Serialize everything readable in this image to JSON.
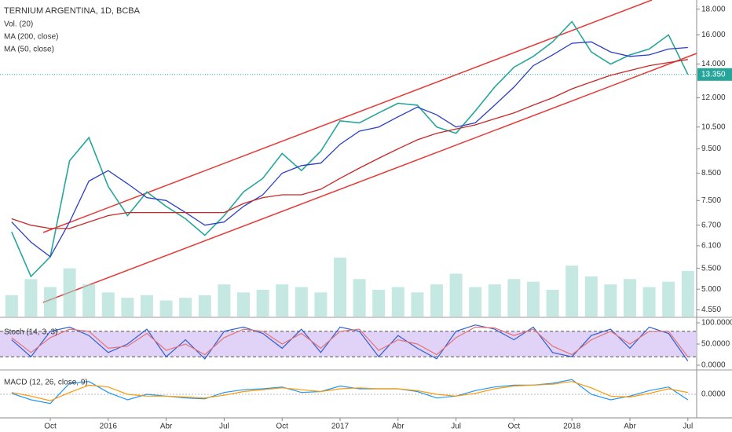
{
  "chart_data": [
    {
      "type": "line",
      "title": "TERNIUM ARGENTINA, 1D, BCBA",
      "legend": [
        "Vol. (20)",
        "MA (200, close)",
        "MA (50, close)"
      ],
      "log_scale": true,
      "x": [
        "2015-08",
        "2015-09",
        "2015-10",
        "2015-11",
        "2015-12",
        "2016-01",
        "2016-02",
        "2016-03",
        "2016-04",
        "2016-05",
        "2016-06",
        "2016-07",
        "2016-08",
        "2016-09",
        "2016-10",
        "2016-11",
        "2016-12",
        "2017-01",
        "2017-02",
        "2017-03",
        "2017-04",
        "2017-05",
        "2017-06",
        "2017-07",
        "2017-08",
        "2017-09",
        "2017-10",
        "2017-11",
        "2017-12",
        "2018-01",
        "2018-02",
        "2018-03",
        "2018-04",
        "2018-05",
        "2018-06",
        "2018-07"
      ],
      "xticks": [
        {
          "value": "2015-10",
          "label": "Oct"
        },
        {
          "value": "2016-01",
          "label": "2016"
        },
        {
          "value": "2016-04",
          "label": "Abr"
        },
        {
          "value": "2016-07",
          "label": "Jul"
        },
        {
          "value": "2016-10",
          "label": "Oct"
        },
        {
          "value": "2017-01",
          "label": "2017"
        },
        {
          "value": "2017-04",
          "label": "Abr"
        },
        {
          "value": "2017-07",
          "label": "Jul"
        },
        {
          "value": "2017-10",
          "label": "Oct"
        },
        {
          "value": "2018-01",
          "label": "2018"
        },
        {
          "value": "2018-04",
          "label": "Abr"
        },
        {
          "value": "2018-07",
          "label": "Jul"
        }
      ],
      "ylim": [
        4.46,
        18.5
      ],
      "yticks": [
        {
          "value": 18,
          "label": "18.000"
        },
        {
          "value": 16,
          "label": "16.000"
        },
        {
          "value": 14,
          "label": "14.000"
        },
        {
          "value": 12,
          "label": "12.000"
        },
        {
          "value": 10.5,
          "label": "10.500"
        },
        {
          "value": 9.5,
          "label": "9.500"
        },
        {
          "value": 8.5,
          "label": "8.500"
        },
        {
          "value": 7.5,
          "label": "7.500"
        },
        {
          "value": 6.7,
          "label": "6.700"
        },
        {
          "value": 6.1,
          "label": "6.100"
        },
        {
          "value": 5.5,
          "label": "5.500"
        },
        {
          "value": 5,
          "label": "5.000"
        },
        {
          "value": 4.55,
          "label": "4.550"
        }
      ],
      "last_price": {
        "value": 13.35,
        "label": "13.350",
        "color": "#26a69a"
      },
      "series": [
        {
          "name": "close",
          "color": "#26a69a",
          "values": [
            6.5,
            5.3,
            5.8,
            9.0,
            10.0,
            8.0,
            7.0,
            7.8,
            7.3,
            6.9,
            6.4,
            7.0,
            7.8,
            8.3,
            9.3,
            8.6,
            9.4,
            10.8,
            10.7,
            11.2,
            11.7,
            11.6,
            10.5,
            10.2,
            11.3,
            12.6,
            13.8,
            14.5,
            15.5,
            17.0,
            14.8,
            14.0,
            14.6,
            15.0,
            16.0,
            13.35
          ]
        },
        {
          "name": "MA (50, close)",
          "color": "#2b3fc4",
          "values": [
            6.8,
            6.2,
            5.8,
            6.8,
            8.2,
            8.6,
            8.1,
            7.6,
            7.5,
            7.1,
            6.7,
            6.8,
            7.3,
            7.7,
            8.5,
            8.8,
            8.9,
            9.7,
            10.3,
            10.5,
            11.0,
            11.5,
            11.1,
            10.5,
            10.7,
            11.6,
            12.6,
            13.9,
            14.6,
            15.4,
            15.5,
            14.8,
            14.5,
            14.6,
            15.0,
            15.1
          ]
        },
        {
          "name": "MA (200, close)",
          "color": "#c62828",
          "values": [
            6.9,
            6.7,
            6.6,
            6.6,
            6.8,
            7.0,
            7.1,
            7.1,
            7.1,
            7.1,
            7.1,
            7.1,
            7.4,
            7.6,
            7.7,
            7.7,
            7.9,
            8.3,
            8.7,
            9.1,
            9.5,
            9.9,
            10.2,
            10.4,
            10.6,
            10.9,
            11.2,
            11.6,
            12.0,
            12.5,
            12.9,
            13.3,
            13.6,
            13.9,
            14.1,
            14.3
          ]
        }
      ],
      "volume": {
        "name": "Vol. (20)",
        "color": "#9fd8cf",
        "values": [
          40,
          70,
          55,
          90,
          60,
          45,
          35,
          40,
          30,
          35,
          40,
          60,
          45,
          50,
          60,
          55,
          45,
          110,
          70,
          50,
          55,
          45,
          60,
          80,
          55,
          60,
          70,
          65,
          50,
          95,
          75,
          60,
          70,
          55,
          65,
          85
        ]
      }
    },
    {
      "type": "stoch",
      "title": "Stoch (14, 3, 3)",
      "x": [
        "2015-08",
        "2015-09",
        "2015-10",
        "2015-11",
        "2015-12",
        "2016-01",
        "2016-02",
        "2016-03",
        "2016-04",
        "2016-05",
        "2016-06",
        "2016-07",
        "2016-08",
        "2016-09",
        "2016-10",
        "2016-11",
        "2016-12",
        "2017-01",
        "2017-02",
        "2017-03",
        "2017-04",
        "2017-05",
        "2017-06",
        "2017-07",
        "2017-08",
        "2017-09",
        "2017-10",
        "2017-11",
        "2017-12",
        "2018-01",
        "2018-02",
        "2018-03",
        "2018-04",
        "2018-05",
        "2018-06",
        "2018-07"
      ],
      "ylim": [
        0,
        100
      ],
      "band": [
        20,
        80
      ],
      "yticks": [
        {
          "value": 100,
          "label": "100.0000"
        },
        {
          "value": 50,
          "label": "50.0000"
        },
        {
          "value": 0,
          "label": "0.0000"
        }
      ],
      "series": [
        {
          "name": "%K",
          "color": "#2f5fd0",
          "values": [
            60,
            20,
            80,
            90,
            70,
            30,
            50,
            85,
            20,
            60,
            15,
            80,
            90,
            75,
            40,
            85,
            30,
            90,
            80,
            20,
            70,
            40,
            15,
            80,
            95,
            85,
            60,
            90,
            30,
            20,
            70,
            85,
            40,
            90,
            75,
            10
          ]
        },
        {
          "name": "%D",
          "color": "#e57373",
          "values": [
            65,
            30,
            65,
            85,
            80,
            40,
            45,
            75,
            35,
            50,
            25,
            65,
            85,
            80,
            50,
            75,
            40,
            80,
            85,
            35,
            60,
            50,
            25,
            65,
            90,
            88,
            70,
            85,
            45,
            25,
            60,
            80,
            50,
            80,
            80,
            20
          ]
        }
      ]
    },
    {
      "type": "macd",
      "title": "MACD (12, 26, close, 9)",
      "x": [
        "2015-08",
        "2015-09",
        "2015-10",
        "2015-11",
        "2015-12",
        "2016-01",
        "2016-02",
        "2016-03",
        "2016-04",
        "2016-05",
        "2016-06",
        "2016-07",
        "2016-08",
        "2016-09",
        "2016-10",
        "2016-11",
        "2016-12",
        "2017-01",
        "2017-02",
        "2017-03",
        "2017-04",
        "2017-05",
        "2017-06",
        "2017-07",
        "2017-08",
        "2017-09",
        "2017-10",
        "2017-11",
        "2017-12",
        "2018-01",
        "2018-02",
        "2018-03",
        "2018-04",
        "2018-05",
        "2018-06",
        "2018-07"
      ],
      "ylim": [
        -1.2,
        1.2
      ],
      "yticks": [
        {
          "value": 0,
          "label": "0.0000"
        }
      ],
      "series": [
        {
          "name": "MACD",
          "color": "#2196f3",
          "values": [
            0.05,
            -0.3,
            -0.5,
            0.6,
            0.7,
            0.1,
            -0.3,
            0.0,
            -0.1,
            -0.2,
            -0.25,
            0.1,
            0.25,
            0.3,
            0.4,
            0.1,
            0.15,
            0.45,
            0.3,
            0.3,
            0.3,
            0.15,
            -0.2,
            -0.1,
            0.2,
            0.4,
            0.5,
            0.5,
            0.6,
            0.8,
            0.0,
            -0.3,
            -0.1,
            0.2,
            0.4,
            -0.3
          ]
        },
        {
          "name": "Signal",
          "color": "#ff9800",
          "values": [
            0.1,
            -0.1,
            -0.35,
            0.1,
            0.5,
            0.4,
            0.0,
            -0.1,
            -0.1,
            -0.15,
            -0.2,
            -0.05,
            0.15,
            0.25,
            0.35,
            0.25,
            0.15,
            0.3,
            0.35,
            0.3,
            0.3,
            0.2,
            0.0,
            -0.1,
            0.05,
            0.3,
            0.45,
            0.5,
            0.55,
            0.7,
            0.35,
            -0.1,
            -0.15,
            0.05,
            0.3,
            0.1
          ]
        }
      ]
    }
  ]
}
